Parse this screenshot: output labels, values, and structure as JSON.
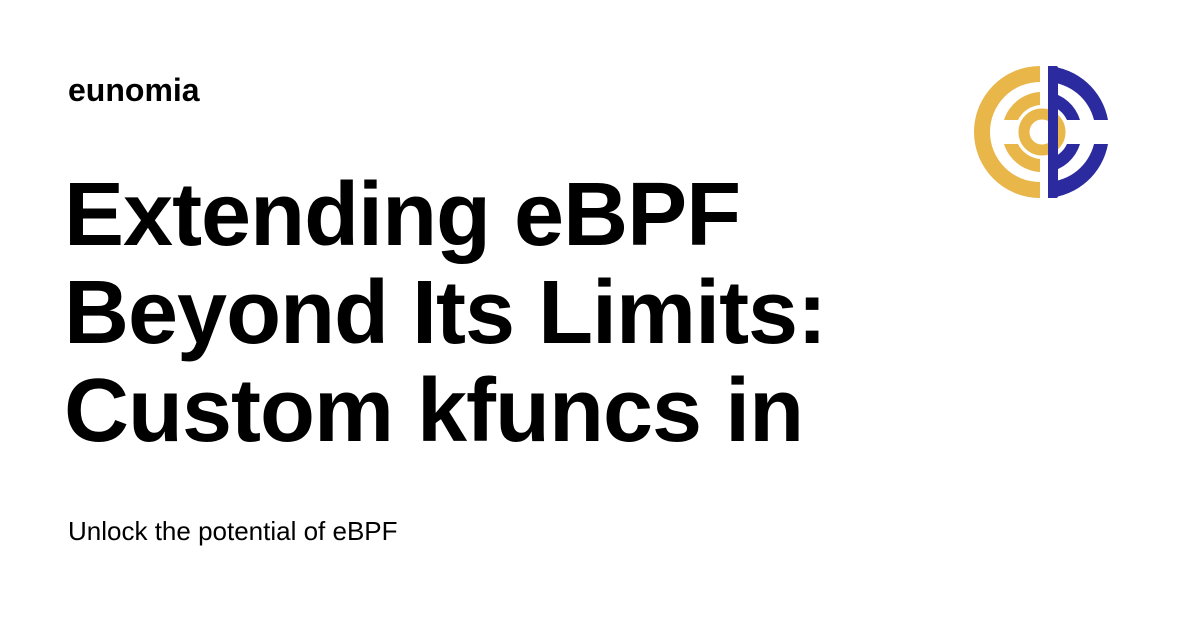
{
  "site": {
    "name": "eunomia"
  },
  "headline": {
    "lines": [
      "Extending eBPF",
      "Beyond Its Limits:",
      "Custom kfuncs in"
    ]
  },
  "subtitle": "Unlock the potential of eBPF",
  "logo": {
    "icon": "eunomia-logo-icon",
    "colors": {
      "gold": "#E9B64A",
      "navy": "#2B2A9F"
    }
  }
}
